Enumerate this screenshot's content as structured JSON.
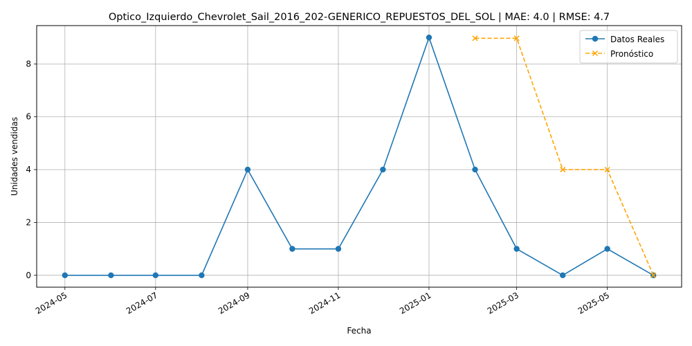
{
  "chart_data": {
    "type": "line",
    "title": "Optico_Izquierdo_Chevrolet_Sail_2016_202-GENERICO_REPUESTOS_DEL_SOL | MAE: 4.0 | RMSE: 4.7",
    "xlabel": "Fecha",
    "ylabel": "Unidades vendidas",
    "ylim": [
      -0.45,
      9.45
    ],
    "xlim": [
      "2024-04-12",
      "2025-06-20"
    ],
    "grid": true,
    "legend_position": "top-right",
    "x_ticks": [
      "2024-05",
      "2024-07",
      "2024-09",
      "2024-11",
      "2025-01",
      "2025-03",
      "2025-05"
    ],
    "y_ticks": [
      0,
      2,
      4,
      6,
      8
    ],
    "series": [
      {
        "name": "Datos Reales",
        "color": "#1f77b4",
        "style": "solid",
        "marker": "circle",
        "x": [
          "2024-05-01",
          "2024-06-01",
          "2024-07-01",
          "2024-08-01",
          "2024-09-01",
          "2024-10-01",
          "2024-11-01",
          "2024-12-01",
          "2025-01-01",
          "2025-02-01",
          "2025-03-01",
          "2025-04-01",
          "2025-05-01",
          "2025-06-01"
        ],
        "values": [
          0,
          0,
          0,
          0,
          4,
          1,
          1,
          4,
          9,
          4,
          1,
          0,
          1,
          0
        ]
      },
      {
        "name": "Pronóstico",
        "color": "#ffa500",
        "style": "dashed",
        "marker": "x",
        "x": [
          "2025-02-01",
          "2025-03-01",
          "2025-04-01",
          "2025-05-01",
          "2025-06-01"
        ],
        "values": [
          8.97,
          8.97,
          4.0,
          4.0,
          0.0
        ]
      }
    ]
  }
}
